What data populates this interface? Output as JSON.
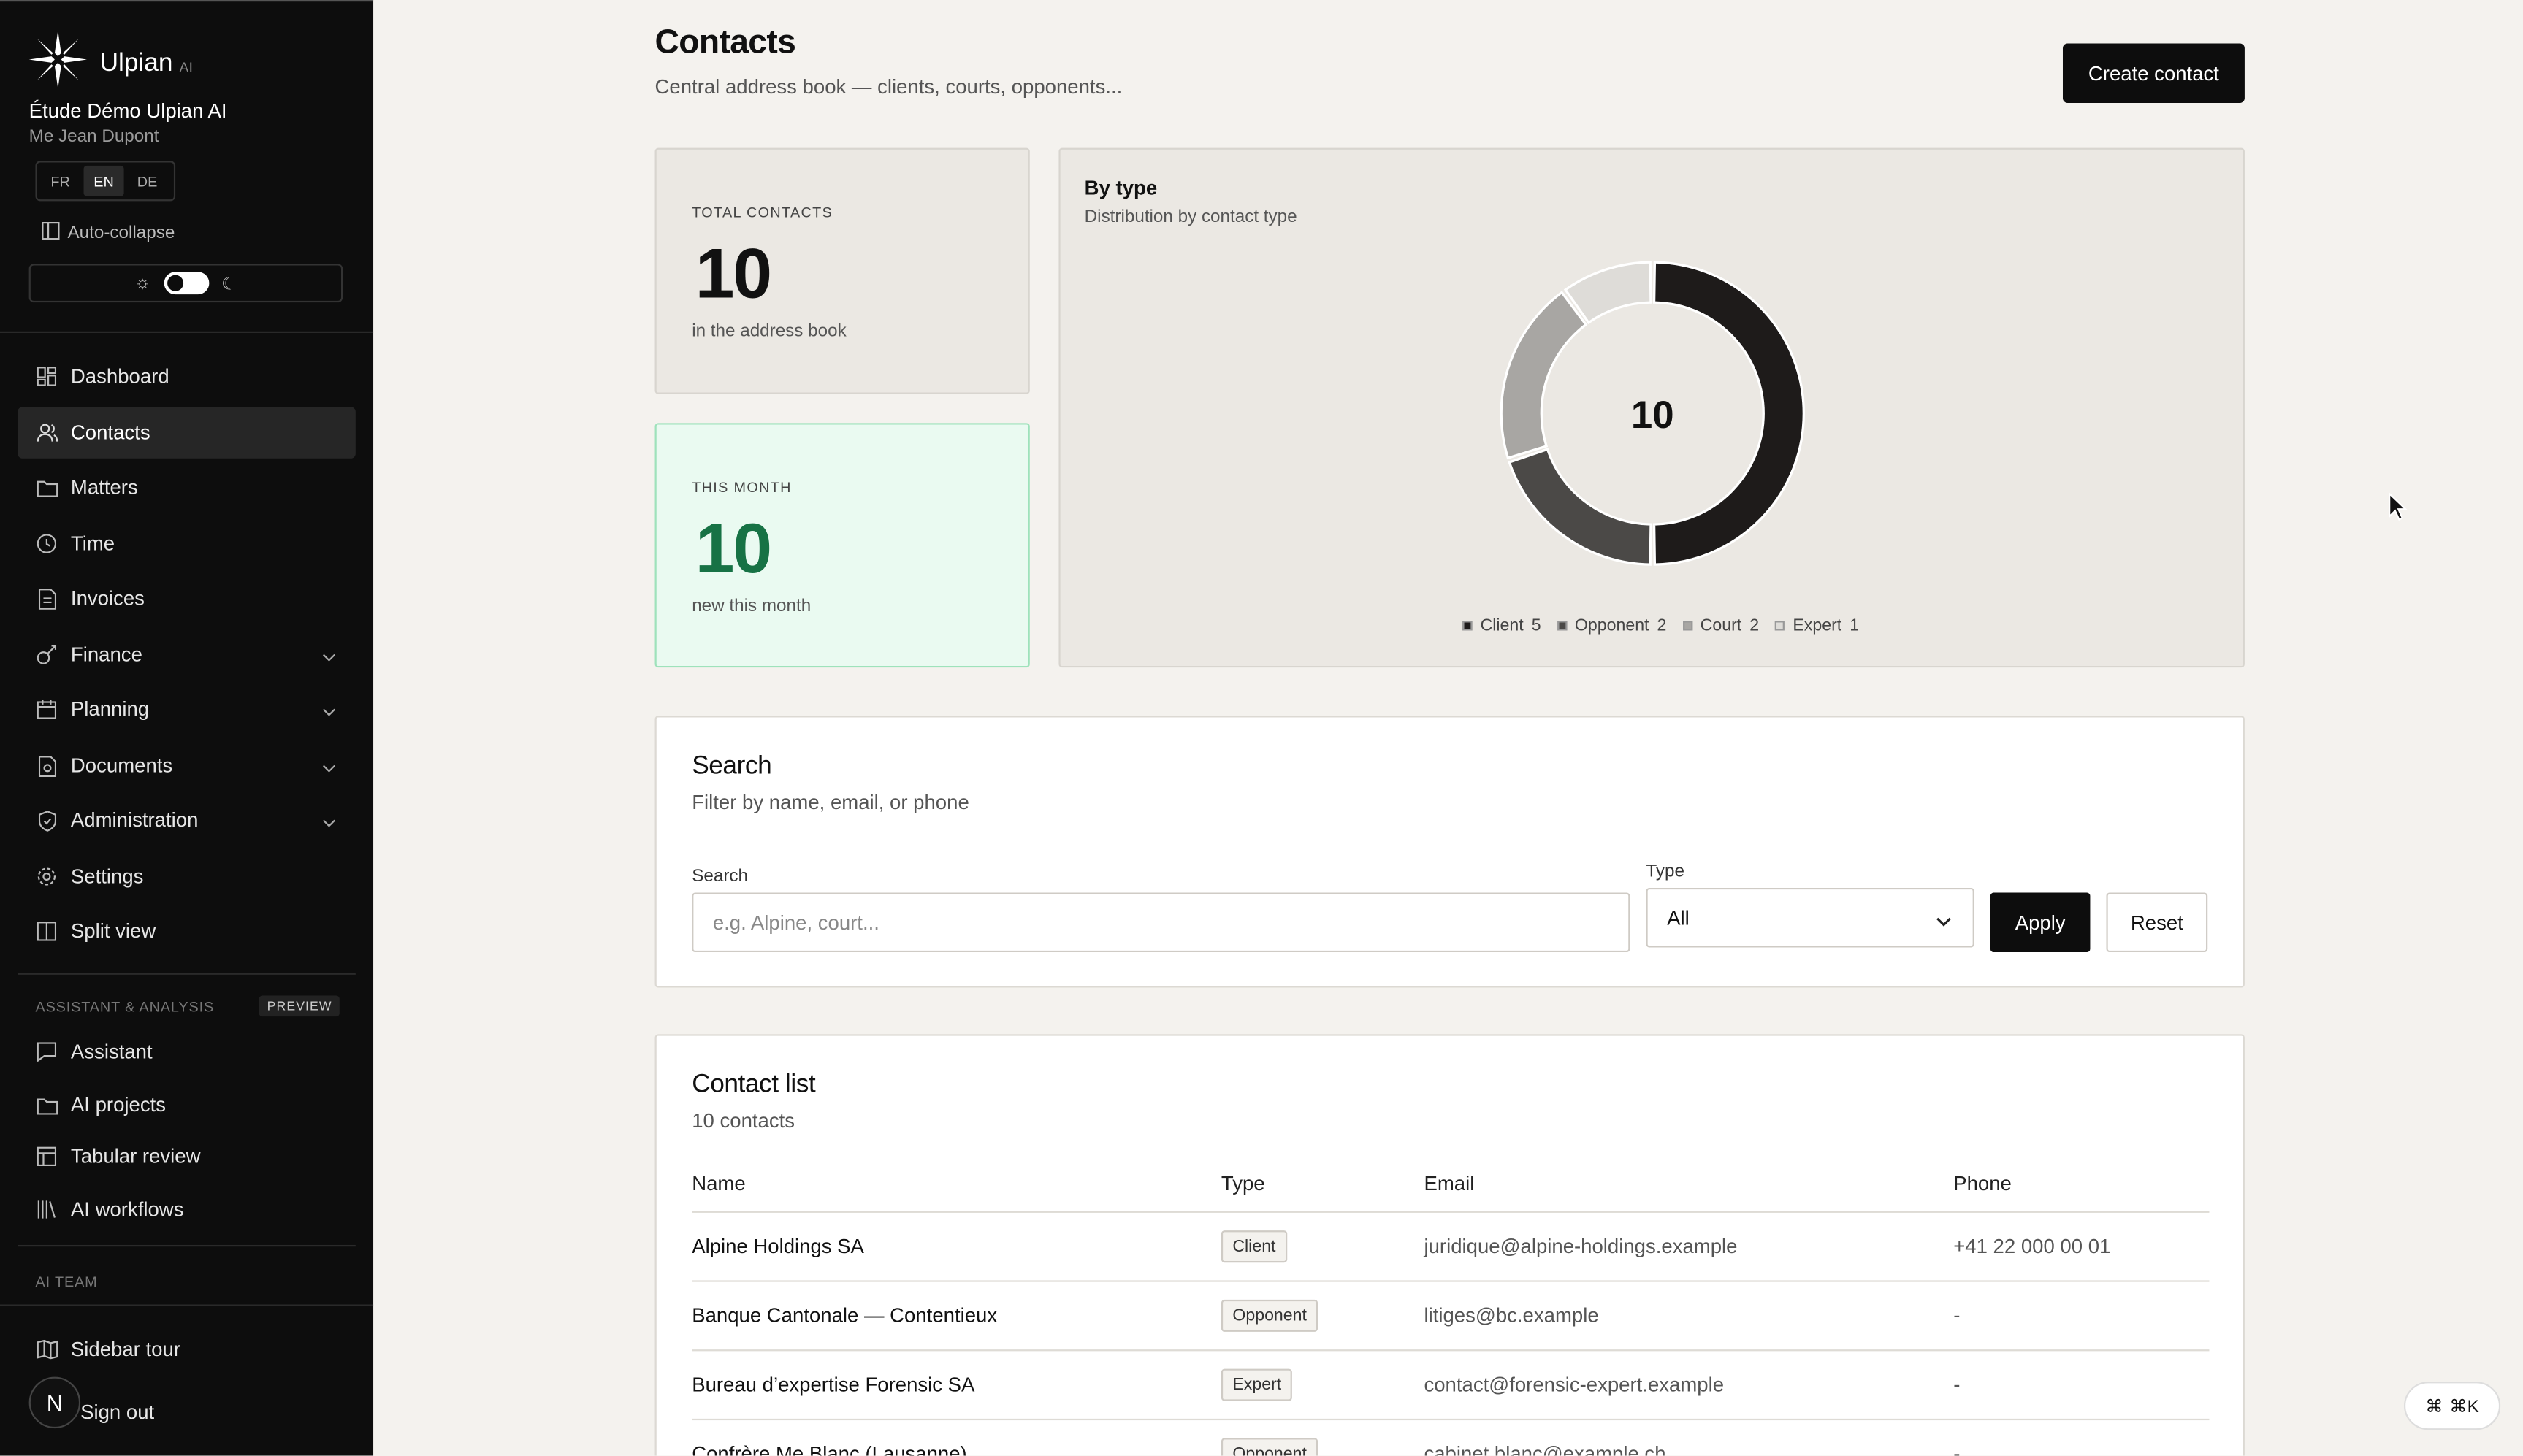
{
  "sidebar": {
    "brand": "Ulpian",
    "brand_suffix": "AI",
    "firm": "Étude Démo Ulpian AI",
    "user": "Me Jean Dupont",
    "languages": [
      "FR",
      "EN",
      "DE"
    ],
    "active_language": "EN",
    "auto_collapse": "Auto-collapse",
    "nav": [
      {
        "label": "Dashboard",
        "icon": "dashboard-icon"
      },
      {
        "label": "Contacts",
        "icon": "users-icon"
      },
      {
        "label": "Matters",
        "icon": "folder-icon"
      },
      {
        "label": "Time",
        "icon": "clock-icon"
      },
      {
        "label": "Invoices",
        "icon": "invoice-icon"
      },
      {
        "label": "Finance",
        "icon": "finance-icon"
      },
      {
        "label": "Planning",
        "icon": "calendar-icon"
      },
      {
        "label": "Documents",
        "icon": "document-icon"
      },
      {
        "label": "Administration",
        "icon": "shield-icon"
      },
      {
        "label": "Settings",
        "icon": "gear-icon"
      },
      {
        "label": "Split view",
        "icon": "split-icon"
      }
    ],
    "section_assistant": "ASSISTANT & ANALYSIS",
    "preview_badge": "PREVIEW",
    "assistant_nav": [
      {
        "label": "Assistant",
        "icon": "chat-icon"
      },
      {
        "label": "AI projects",
        "icon": "folder-icon"
      },
      {
        "label": "Tabular review",
        "icon": "table-icon"
      },
      {
        "label": "AI workflows",
        "icon": "library-icon"
      }
    ],
    "section_team": "AI TEAM",
    "sidebar_tour": "Sidebar tour",
    "avatar_initial": "N",
    "sign_out": "Sign out"
  },
  "header": {
    "title": "Contacts",
    "subtitle": "Central address book — clients, courts, opponents...",
    "create_button": "Create contact"
  },
  "stats": {
    "total_label": "TOTAL CONTACTS",
    "total_value": "10",
    "total_sub": "in the address book",
    "month_label": "THIS MONTH",
    "month_value": "10",
    "month_sub": "new this month"
  },
  "by_type": {
    "title": "By type",
    "subtitle": "Distribution by contact type",
    "center_total": "10"
  },
  "chart_data": {
    "type": "pie",
    "title": "By type",
    "subtitle": "Distribution by contact type",
    "categories": [
      "Client",
      "Opponent",
      "Court",
      "Expert"
    ],
    "values": [
      5,
      2,
      2,
      1
    ],
    "colors": [
      "#1e1b1a",
      "#4b4947",
      "#a8a6a3",
      "#dedcd8"
    ],
    "total": 10,
    "legend": "bottom"
  },
  "search": {
    "title": "Search",
    "subtitle": "Filter by name, email, or phone",
    "search_label": "Search",
    "search_placeholder": "e.g. Alpine, court...",
    "type_label": "Type",
    "type_value": "All",
    "apply": "Apply",
    "reset": "Reset"
  },
  "contacts": {
    "title": "Contact list",
    "count": "10 contacts",
    "columns": [
      "Name",
      "Type",
      "Email",
      "Phone"
    ],
    "rows": [
      {
        "name": "Alpine Holdings SA",
        "type": "Client",
        "email": "juridique@alpine-holdings.example",
        "phone": "+41 22 000 00 01"
      },
      {
        "name": "Banque Cantonale — Contentieux",
        "type": "Opponent",
        "email": "litiges@bc.example",
        "phone": "-"
      },
      {
        "name": "Bureau d’expertise Forensic SA",
        "type": "Expert",
        "email": "contact@forensic-expert.example",
        "phone": "-"
      },
      {
        "name": "Confrère Me Blanc (Lausanne)",
        "type": "Opponent",
        "email": "cabinet.blanc@example.ch",
        "phone": "-"
      }
    ]
  },
  "shortcut": "⌘K"
}
